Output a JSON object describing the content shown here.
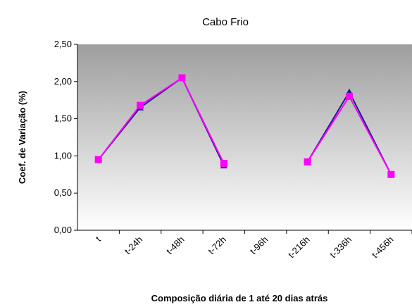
{
  "chart_data": {
    "type": "line",
    "title": "Cabo Frio",
    "ylabel": "Coef. de Variação (%)",
    "xlabel": "Composição diária de 1 até 20 dias atrás",
    "categories": [
      "t",
      "t-24h",
      "t-48h",
      "t-72h",
      "t-96h",
      "t-216h",
      "t-336h",
      "t-456h"
    ],
    "series": [
      {
        "color": "#1c1c8c",
        "marker": "triangle",
        "values": [
          0.95,
          1.65,
          2.05,
          0.87,
          null,
          0.92,
          1.86,
          0.75
        ]
      },
      {
        "color": "#ff00ff",
        "marker": "square",
        "values": [
          0.95,
          1.68,
          2.05,
          0.9,
          null,
          0.92,
          1.8,
          0.75
        ]
      }
    ],
    "ylim": [
      0,
      2.5
    ],
    "yticks": [
      {
        "value": 0,
        "label": "0,00"
      },
      {
        "value": 0.5,
        "label": "0,50"
      },
      {
        "value": 1,
        "label": "1,00"
      },
      {
        "value": 1.5,
        "label": "1,50"
      },
      {
        "value": 2,
        "label": "2,00"
      },
      {
        "value": 2.5,
        "label": "2,50"
      }
    ]
  }
}
